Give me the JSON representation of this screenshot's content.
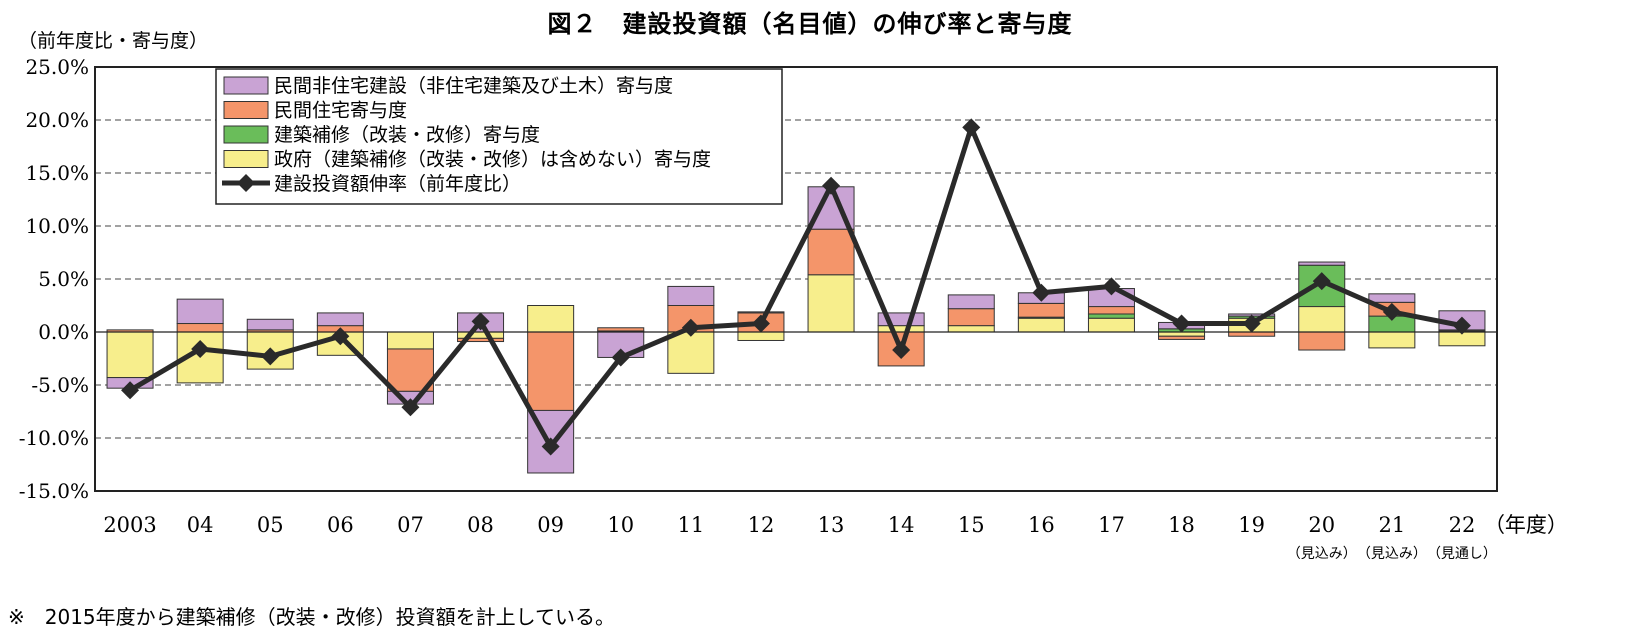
{
  "chart_data": {
    "type": "bar",
    "title": "図２　建設投資額（名目値）の伸び率と寄与度",
    "ylabel": "（前年度比・寄与度）",
    "xlabel_suffix": "（年度）",
    "ylim": [
      -15,
      25
    ],
    "yticks": [
      -15,
      -10,
      -5,
      0,
      5,
      10,
      15,
      20,
      25
    ],
    "ytick_labels": [
      "-15.0%",
      "-10.0%",
      "-5.0%",
      "0.0%",
      "5.0%",
      "10.0%",
      "15.0%",
      "20.0%",
      "25.0%"
    ],
    "grid": "horizontal-dashed",
    "legend_position": "top-left",
    "categories": [
      "2003",
      "04",
      "05",
      "06",
      "07",
      "08",
      "09",
      "10",
      "11",
      "12",
      "13",
      "14",
      "15",
      "16",
      "17",
      "18",
      "19",
      "20",
      "21",
      "22"
    ],
    "category_notes": [
      "",
      "",
      "",
      "",
      "",
      "",
      "",
      "",
      "",
      "",
      "",
      "",
      "",
      "",
      "",
      "",
      "",
      "（見込み）",
      "（見込み）",
      "（見通し）"
    ],
    "series": [
      {
        "name": "民間非住宅建設（非住宅建築及び土木）寄与度",
        "kind": "bar",
        "color": "#c9a3d4",
        "values": [
          -1.0,
          2.3,
          1.0,
          1.2,
          -1.2,
          1.8,
          -5.9,
          -2.4,
          1.8,
          0.1,
          4.0,
          1.2,
          1.3,
          1.0,
          1.7,
          0.6,
          0.2,
          0.3,
          0.8,
          1.8
        ]
      },
      {
        "name": "民間住宅寄与度",
        "kind": "bar",
        "color": "#f4956a",
        "values": [
          0.2,
          0.8,
          0.2,
          0.6,
          -4.0,
          -0.3,
          -7.4,
          0.3,
          2.5,
          1.8,
          4.3,
          -3.2,
          1.6,
          1.3,
          0.7,
          -0.3,
          -0.4,
          -1.7,
          1.3,
          0.1
        ]
      },
      {
        "name": "建築補修（改装・改修）寄与度",
        "kind": "bar",
        "color": "#6abd5a",
        "values": [
          0.0,
          0.0,
          0.0,
          0.0,
          0.0,
          0.0,
          0.0,
          0.0,
          0.0,
          0.0,
          0.0,
          0.0,
          0.0,
          0.1,
          0.4,
          0.3,
          0.2,
          3.9,
          1.5,
          0.1
        ]
      },
      {
        "name": "政府（建築補修（改装・改修）は含めない）寄与度",
        "kind": "bar",
        "color": "#f7ee8c",
        "values": [
          -4.3,
          -4.8,
          -3.5,
          -2.2,
          -1.6,
          -0.6,
          2.5,
          0.1,
          -3.9,
          -0.8,
          5.4,
          0.6,
          0.6,
          1.3,
          1.3,
          -0.4,
          1.3,
          2.4,
          -1.5,
          -1.3
        ]
      },
      {
        "name": "建設投資額伸率（前年度比）",
        "kind": "line",
        "color": "#2a2a2a",
        "values": [
          -5.5,
          -1.6,
          -2.3,
          -0.4,
          -7.1,
          1.0,
          -10.8,
          -2.4,
          0.4,
          0.8,
          13.8,
          -1.7,
          19.3,
          3.7,
          4.3,
          0.8,
          0.8,
          4.8,
          1.9,
          0.6
        ]
      }
    ],
    "footnote": "※　2015年度から建築補修（改装・改修）投資額を計上している。"
  }
}
